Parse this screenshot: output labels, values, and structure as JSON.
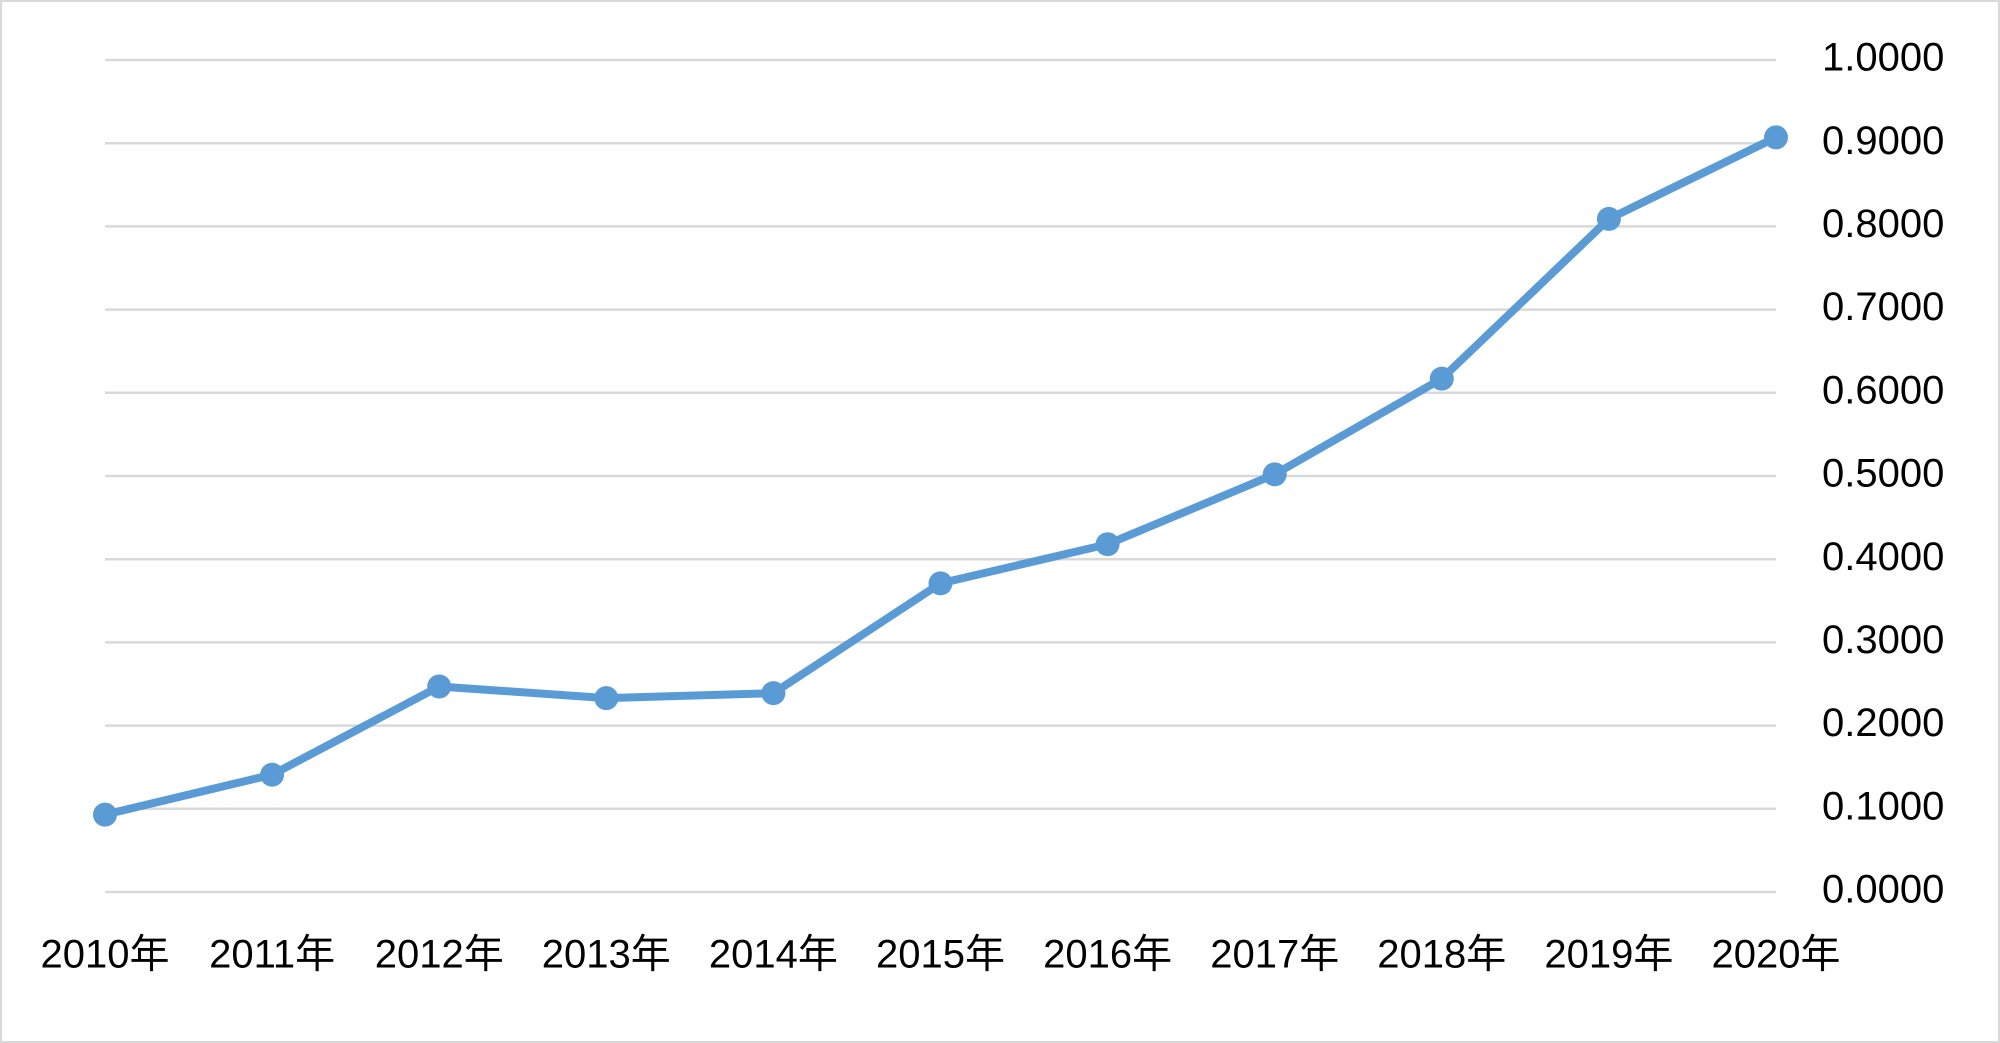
{
  "chart_data": {
    "type": "line",
    "categories": [
      "2010年",
      "2011年",
      "2012年",
      "2013年",
      "2014年",
      "2015年",
      "2016年",
      "2017年",
      "2018年",
      "2019年",
      "2020年"
    ],
    "values": [
      0.093,
      0.141,
      0.247,
      0.233,
      0.239,
      0.371,
      0.418,
      0.502,
      0.617,
      0.809,
      0.907
    ],
    "color": "#5b9bd5",
    "ylim": [
      0,
      1
    ],
    "yticks": [
      {
        "value": 0,
        "label": "0.0000"
      },
      {
        "value": 0.1,
        "label": "0.1000"
      },
      {
        "value": 0.2,
        "label": "0.2000"
      },
      {
        "value": 0.3,
        "label": "0.3000"
      },
      {
        "value": 0.4,
        "label": "0.4000"
      },
      {
        "value": 0.5,
        "label": "0.5000"
      },
      {
        "value": 0.6,
        "label": "0.6000"
      },
      {
        "value": 0.7,
        "label": "0.7000"
      },
      {
        "value": 0.8,
        "label": "0.8000"
      },
      {
        "value": 0.9,
        "label": "0.9000"
      },
      {
        "value": 1,
        "label": "1.0000"
      }
    ],
    "grid": true,
    "y_axis_side": "right"
  }
}
